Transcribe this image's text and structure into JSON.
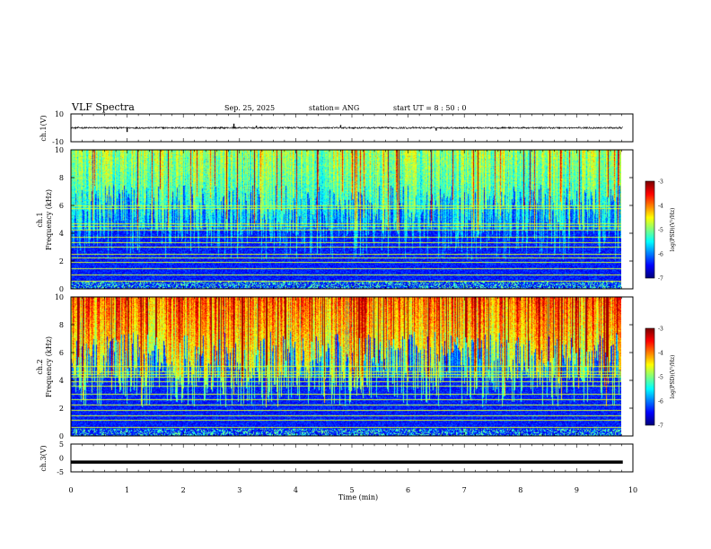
{
  "header": {
    "title": "VLF Spectra",
    "date": "Sep. 25, 2025",
    "station": "station= ANG",
    "start": "start  UT =   8 : 50 : 0"
  },
  "chart_data": [
    {
      "type": "line",
      "panel": "ch1-waveform",
      "ylabel": "ch.1(V)",
      "ylim": [
        -10,
        10
      ],
      "yticks": [
        "10",
        "-10"
      ],
      "xlim": [
        0,
        10
      ],
      "baseline": 0,
      "noise_amplitude": 1,
      "spikes": [
        {
          "t": 1.0,
          "v": -3
        },
        {
          "t": 2.9,
          "v": 3
        },
        {
          "t": 3.3,
          "v": 1.5
        },
        {
          "t": 4.8,
          "v": 2
        },
        {
          "t": 6.5,
          "v": -2
        }
      ]
    },
    {
      "type": "heatmap",
      "panel": "ch1-spectrogram",
      "ylabel_top": "ch.1",
      "ylabel": "Frequency (kHz)",
      "ylim": [
        0,
        10
      ],
      "yticks": [
        "0",
        "2",
        "4",
        "6",
        "8",
        "10"
      ],
      "xlim": [
        0,
        10
      ],
      "data_xmax": 9.82,
      "colorbar": {
        "label": "log(PSD)(V²/Hz)",
        "range": [
          -7,
          -3
        ],
        "ticks": [
          "-3",
          "-4",
          "-5",
          "-6",
          "-7"
        ]
      },
      "line_freqs_khz": [
        0.5,
        1.0,
        1.4,
        1.9,
        2.2,
        2.5,
        3.0,
        3.3,
        3.7,
        4.2,
        4.5,
        4.7,
        5.8,
        6.0
      ]
    },
    {
      "type": "heatmap",
      "panel": "ch2-spectrogram",
      "ylabel_top": "ch.2",
      "ylabel": "Frequency (kHz)",
      "ylim": [
        0,
        10
      ],
      "yticks": [
        "0",
        "2",
        "4",
        "6",
        "8",
        "10"
      ],
      "xlim": [
        0,
        10
      ],
      "data_xmax": 9.82,
      "colorbar": {
        "label": "log(PSD)(V²/Hz)",
        "range": [
          -7,
          -3
        ],
        "ticks": [
          "-3",
          "-4",
          "-5",
          "-6",
          "-7"
        ]
      },
      "line_freqs_khz": [
        0.6,
        1.1,
        1.4,
        1.8,
        2.2,
        2.6,
        3.0,
        3.6,
        3.9,
        4.2,
        4.4,
        4.6,
        5.0
      ]
    },
    {
      "type": "line",
      "panel": "ch3-waveform",
      "ylabel": "ch.3(V)",
      "ylim": [
        -5,
        5
      ],
      "yticks": [
        "5",
        "0",
        "-5"
      ],
      "xlim": [
        0,
        10
      ],
      "value": -1.5,
      "xlabel": "Time (min)",
      "xticks": [
        "0",
        "1",
        "2",
        "3",
        "4",
        "5",
        "6",
        "7",
        "8",
        "9",
        "10"
      ]
    }
  ]
}
